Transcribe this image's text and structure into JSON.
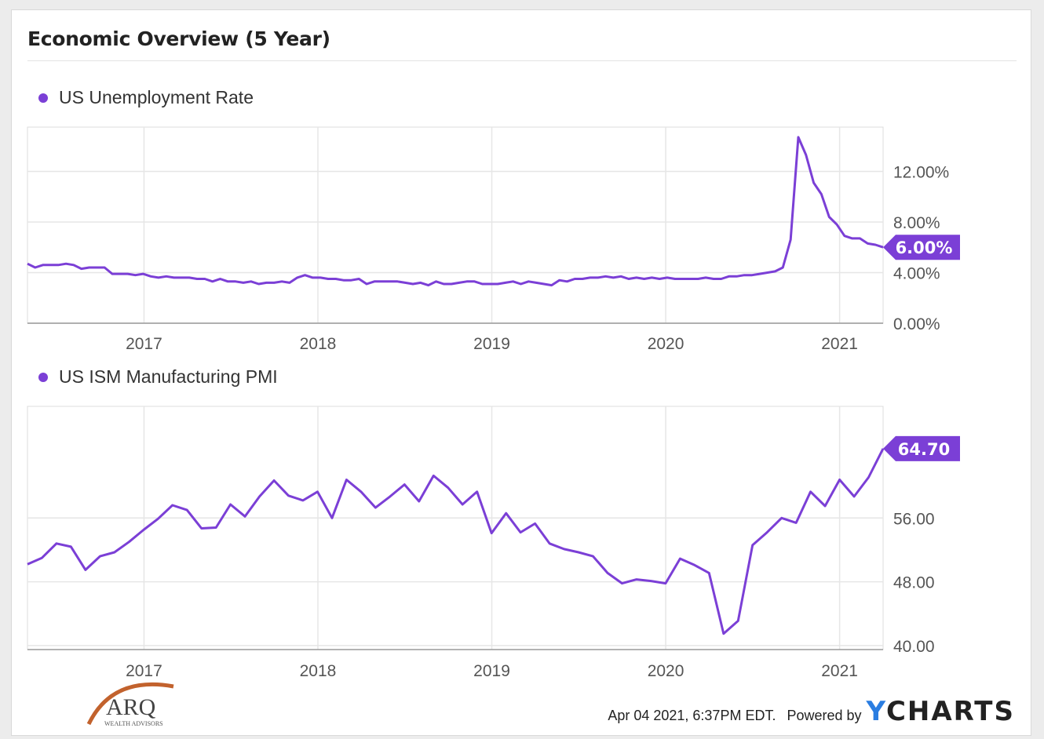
{
  "title": "Economic Overview (5 Year)",
  "colors": {
    "series": "#7b3fd6",
    "grid": "#e6e6e6",
    "axis": "#9a9a9a"
  },
  "footer": {
    "timestamp": "Apr 04 2021, 6:37PM EDT.",
    "powered_by": "Powered by",
    "brand_y": "Y",
    "brand_rest": "CHARTS",
    "logo_text": "ARQ",
    "logo_subtext": "WEALTH ADVISORS"
  },
  "chart_data": [
    {
      "type": "line",
      "series": [
        {
          "name": "US Unemployment Rate",
          "values": [
            4.7,
            4.4,
            4.6,
            4.6,
            4.6,
            4.7,
            4.6,
            4.3,
            4.4,
            4.4,
            4.4,
            3.9,
            3.9,
            3.9,
            3.8,
            3.9,
            3.7,
            3.6,
            3.7,
            3.6,
            3.6,
            3.6,
            3.5,
            3.5,
            3.3,
            3.5,
            3.3,
            3.3,
            3.2,
            3.3,
            3.1,
            3.2,
            3.2,
            3.3,
            3.2,
            3.6,
            3.8,
            3.6,
            3.6,
            3.5,
            3.5,
            3.4,
            3.4,
            3.5,
            3.1,
            3.3,
            3.3,
            3.3,
            3.3,
            3.2,
            3.1,
            3.2,
            3.0,
            3.3,
            3.1,
            3.1,
            3.2,
            3.3,
            3.3,
            3.1,
            3.1,
            3.1,
            3.2,
            3.3,
            3.1,
            3.3,
            3.2,
            3.1,
            3.0,
            3.4,
            3.3,
            3.5,
            3.5,
            3.6,
            3.6,
            3.7,
            3.6,
            3.7,
            3.5,
            3.6,
            3.5,
            3.6,
            3.5,
            3.6,
            3.5,
            3.5,
            3.5,
            3.5,
            3.6,
            3.5,
            3.5,
            3.7,
            3.7,
            3.8,
            3.8,
            3.9,
            4.0,
            4.1,
            4.4,
            6.6,
            14.7,
            13.3,
            11.1,
            10.2,
            8.4,
            7.8,
            6.9,
            6.7,
            6.7,
            6.3,
            6.2,
            6.0
          ]
        }
      ],
      "x_start": 2016.33,
      "x_end": 2021.25,
      "x_ticks": [
        "2017",
        "2018",
        "2019",
        "2020",
        "2021"
      ],
      "y_ticks": [
        "0.00%",
        "4.00%",
        "8.00%",
        "12.00%"
      ],
      "ylim": [
        0,
        15.5
      ],
      "last_value_label": "6.00%"
    },
    {
      "type": "line",
      "series": [
        {
          "name": "US ISM Manufacturing PMI",
          "values": [
            50.2,
            51.0,
            52.8,
            52.4,
            49.5,
            51.2,
            51.7,
            53.0,
            54.5,
            55.9,
            57.6,
            57.0,
            54.7,
            54.8,
            57.7,
            56.2,
            58.7,
            60.7,
            58.8,
            58.2,
            59.3,
            56.0,
            60.8,
            59.3,
            57.3,
            58.7,
            60.2,
            58.1,
            61.3,
            59.8,
            57.7,
            59.3,
            54.1,
            56.6,
            54.2,
            55.3,
            52.8,
            52.1,
            51.7,
            51.2,
            49.1,
            47.8,
            48.3,
            48.1,
            47.8,
            50.9,
            50.1,
            49.1,
            41.5,
            43.1,
            52.6,
            54.2,
            56.0,
            55.4,
            59.3,
            57.5,
            60.8,
            58.7,
            61.1,
            64.7
          ]
        }
      ],
      "x_start": 2016.33,
      "x_end": 2021.25,
      "x_ticks": [
        "2017",
        "2018",
        "2019",
        "2020",
        "2021"
      ],
      "y_ticks": [
        "40.00",
        "48.00",
        "56.00"
      ],
      "ylim": [
        39.5,
        70
      ],
      "last_value_label": "64.70"
    }
  ]
}
